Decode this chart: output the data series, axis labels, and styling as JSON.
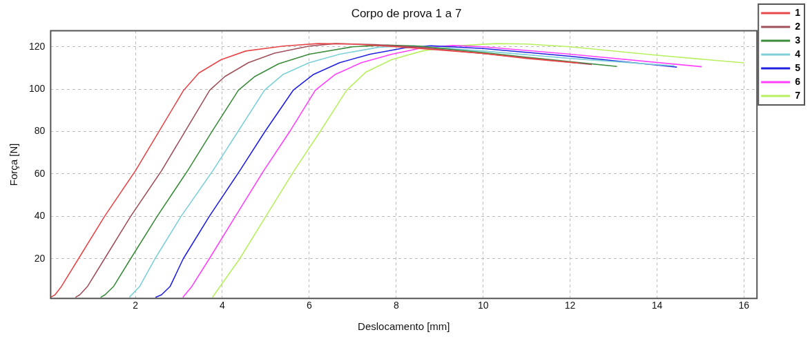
{
  "chart_data": {
    "type": "line",
    "title": "Corpo de prova 1 a 7",
    "xlabel": "Deslocamento [mm]",
    "ylabel": "Força [N]",
    "xlim": [
      0.05,
      16.3
    ],
    "ylim": [
      1.3,
      127.6
    ],
    "xticks": [
      2,
      4,
      6,
      8,
      10,
      12,
      14,
      16
    ],
    "yticks": [
      20,
      40,
      60,
      80,
      100,
      120
    ],
    "grid": true,
    "legend": "right",
    "series": [
      {
        "name": "1",
        "color": "#e8474a",
        "x": [
          0.05,
          0.15,
          0.3,
          0.69,
          1.29,
          2.0,
          2.54,
          3.11,
          3.46,
          3.97,
          4.54,
          5.4,
          6.2,
          7,
          8,
          9,
          10,
          11,
          12.2
        ],
        "values": [
          1.8,
          3,
          7,
          20,
          40,
          61.5,
          80,
          99.5,
          107.6,
          113.9,
          118,
          120.3,
          121.5,
          121.3,
          120,
          118.5,
          116.8,
          114.5,
          112.3
        ]
      },
      {
        "name": "2",
        "color": "#a0505a",
        "x": [
          0.62,
          0.72,
          0.9,
          1.29,
          1.89,
          2.6,
          3.14,
          3.71,
          4.06,
          4.6,
          5.2,
          6.0,
          6.6,
          7.5,
          8.5,
          10,
          11,
          12.5
        ],
        "values": [
          1.8,
          3,
          7,
          20,
          40,
          61.5,
          80,
          99.5,
          106,
          112.5,
          117,
          120.3,
          121.5,
          121,
          119.8,
          116.8,
          114.8,
          111.6
        ]
      },
      {
        "name": "3",
        "color": "#3a8c3a",
        "x": [
          1.2,
          1.3,
          1.5,
          1.89,
          2.5,
          3.2,
          3.76,
          4.37,
          4.75,
          5.3,
          6,
          7,
          7.8,
          8.5,
          10,
          11.5,
          13.08
        ],
        "values": [
          1.8,
          3,
          7,
          20,
          40,
          61.5,
          80,
          99.5,
          106,
          112,
          116.5,
          120,
          120.8,
          120.3,
          117.3,
          114,
          110.7
        ]
      },
      {
        "name": "4",
        "color": "#7dd0d8",
        "x": [
          1.86,
          2.1,
          2.45,
          3.05,
          3.78,
          4.36,
          4.97,
          5.4,
          6,
          6.7,
          7.6,
          8.4,
          10,
          12,
          14.4
        ],
        "values": [
          1.8,
          7,
          20,
          40,
          61.5,
          80,
          99.5,
          107,
          112.5,
          116.5,
          119.8,
          120.5,
          118,
          114.5,
          111
        ]
      },
      {
        "name": "5",
        "color": "#2020e0",
        "x": [
          2.46,
          2.6,
          2.8,
          3.1,
          3.7,
          4.4,
          4.98,
          5.63,
          6.1,
          6.7,
          7.4,
          8.2,
          8.8,
          10,
          12,
          14.46
        ],
        "values": [
          1.8,
          3,
          7,
          20,
          40,
          61.5,
          80,
          99.5,
          107,
          112.5,
          116.5,
          119.5,
          120.5,
          119.2,
          115.5,
          110.4
        ]
      },
      {
        "name": "6",
        "color": "#ff40ff",
        "x": [
          3.09,
          3.3,
          3.7,
          4.3,
          4.95,
          5.55,
          6.14,
          6.6,
          7.2,
          7.9,
          8.6,
          9.3,
          10,
          12,
          15.03
        ],
        "values": [
          1.8,
          7,
          20,
          40,
          61.5,
          80,
          99.5,
          107,
          112.5,
          116.5,
          119.5,
          120.6,
          120,
          116.5,
          110.6
        ]
      },
      {
        "name": "7",
        "color": "#b8f060",
        "x": [
          3.77,
          3.95,
          4.4,
          5.0,
          5.65,
          6.25,
          6.86,
          7.3,
          7.9,
          8.6,
          9.4,
          10.3,
          11,
          12,
          14,
          16
        ],
        "values": [
          1.8,
          7,
          20,
          40,
          61.5,
          80,
          99.5,
          108,
          114,
          118,
          120.5,
          121.5,
          121.3,
          120,
          116,
          112.4
        ]
      }
    ]
  }
}
